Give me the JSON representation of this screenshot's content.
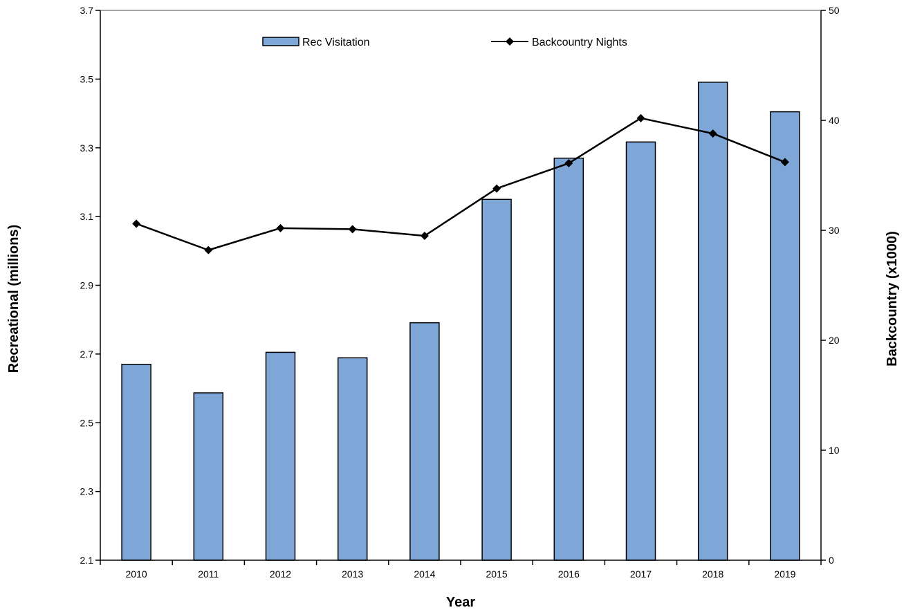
{
  "chart_data": {
    "type": "bar",
    "categories": [
      "2010",
      "2011",
      "2012",
      "2013",
      "2014",
      "2015",
      "2016",
      "2017",
      "2018",
      "2019"
    ],
    "series": [
      {
        "name": "Rec Visitation",
        "type": "bar",
        "axis": "left",
        "color": "#7ea7d8",
        "values": [
          2.67,
          2.587,
          2.705,
          2.689,
          2.791,
          3.15,
          3.27,
          3.317,
          3.491,
          3.405
        ]
      },
      {
        "name": "Backcountry Nights",
        "type": "line",
        "axis": "right",
        "color": "#000000",
        "marker": "diamond",
        "values": [
          30.6,
          28.2,
          30.2,
          30.1,
          29.5,
          33.8,
          36.1,
          40.2,
          38.8,
          36.2
        ]
      }
    ],
    "xlabel": "Year",
    "ylabel": "Recreational (millions)",
    "y2label": "Backcountry (x1000)",
    "ylim": [
      2.1,
      3.7
    ],
    "yticks": [
      "2.1",
      "2.3",
      "2.5",
      "2.7",
      "2.9",
      "3.1",
      "3.3",
      "3.5",
      "3.7"
    ],
    "y2lim": [
      0,
      50
    ],
    "y2ticks": [
      "0",
      "10",
      "20",
      "30",
      "40",
      "50"
    ],
    "grid": false,
    "legend_position": "top-center"
  }
}
